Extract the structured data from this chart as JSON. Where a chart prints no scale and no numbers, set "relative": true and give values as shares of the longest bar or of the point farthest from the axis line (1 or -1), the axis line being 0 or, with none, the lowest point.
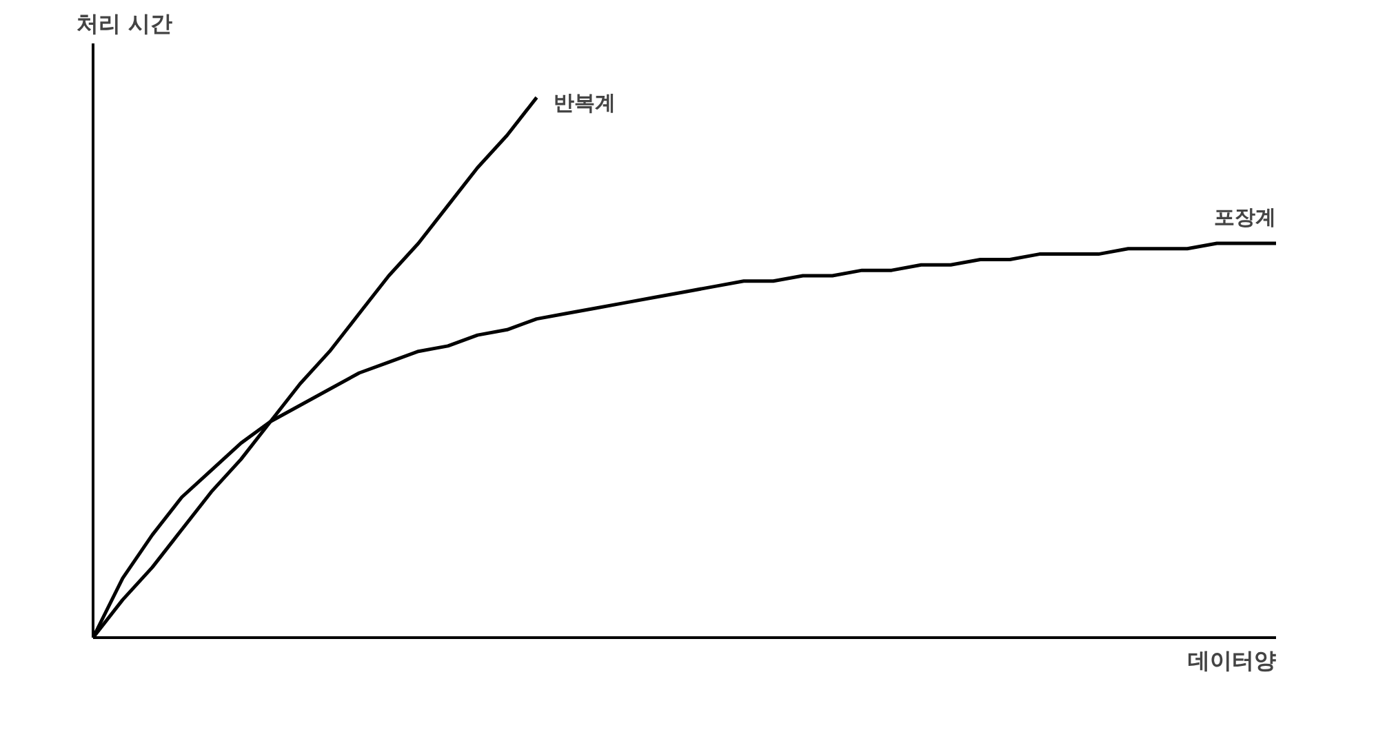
{
  "chart_data": {
    "type": "line",
    "relative": true,
    "xlabel": "데이터양",
    "ylabel": "처리 시간",
    "marker": "none",
    "line_style": "solid",
    "categories": [
      null,
      null,
      null,
      null,
      null,
      null,
      null,
      null,
      null,
      null,
      null,
      null,
      null,
      null,
      null,
      null,
      null,
      null,
      null,
      null,
      null,
      null,
      null,
      null,
      null,
      null,
      null,
      null,
      null,
      null,
      null,
      null,
      null,
      null,
      null,
      null,
      null,
      null,
      null,
      null,
      null
    ],
    "series": [
      {
        "name": "반복계",
        "color": "#000000",
        "values": [
          0,
          0.07,
          0.13,
          0.2,
          0.27,
          0.33,
          0.4,
          0.47,
          0.53,
          0.6,
          0.67,
          0.73,
          0.8,
          0.87,
          0.93,
          1,
          null,
          null,
          null,
          null,
          null,
          null,
          null,
          null,
          null,
          null,
          null,
          null,
          null,
          null,
          null,
          null,
          null,
          null,
          null,
          null,
          null,
          null,
          null,
          null,
          null
        ]
      },
      {
        "name": "포장계",
        "color": "#000000",
        "values": [
          0,
          0.11,
          0.19,
          0.26,
          0.31,
          0.36,
          0.4,
          0.43,
          0.46,
          0.49,
          0.51,
          0.53,
          0.54,
          0.56,
          0.57,
          0.59,
          0.6,
          0.61,
          0.62,
          0.63,
          0.64,
          0.65,
          0.66,
          0.66,
          0.67,
          0.67,
          0.68,
          0.68,
          0.69,
          0.69,
          0.7,
          0.7,
          0.71,
          0.71,
          0.71,
          0.72,
          0.72,
          0.72,
          0.73,
          0.73,
          0.73
        ]
      }
    ]
  }
}
